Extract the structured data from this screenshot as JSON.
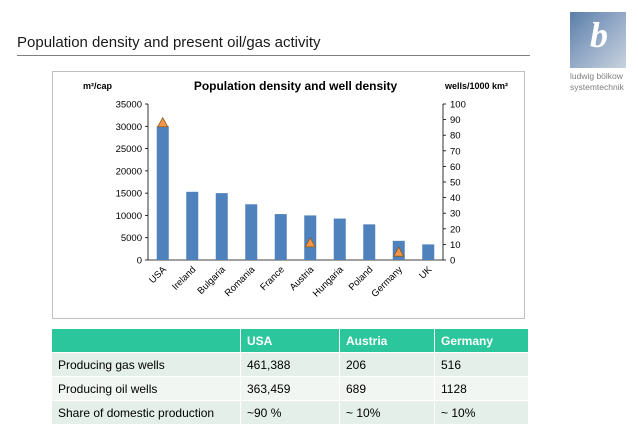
{
  "slide": {
    "title": "Population density and present oil/gas activity",
    "logo_text": "ludwig bölkow systemtechnik"
  },
  "chart_data": {
    "type": "bar",
    "title": "Population density and well density",
    "ylabel_left": "m²/cap",
    "ylabel_right": "wells/1000 km²",
    "categories": [
      "USA",
      "Ireland",
      "Bulgaria",
      "Romania",
      "France",
      "Austria",
      "Hungaria",
      "Poland",
      "Germany",
      "UK"
    ],
    "series": [
      {
        "values": [
          30000,
          15300,
          15000,
          12500,
          10300,
          10000,
          9300,
          8000,
          4300,
          3500
        ],
        "axis": "left",
        "color": "#4f81bd"
      },
      {
        "values": [
          88,
          null,
          null,
          null,
          null,
          null,
          null,
          null,
          null,
          null
        ],
        "points": {
          "USA": 88,
          "Austria": 11,
          "Germany": 5
        },
        "axis": "right",
        "marker": "triangle",
        "color": "#f79646"
      }
    ],
    "ylim_left": [
      0,
      35000
    ],
    "yticks_left": [
      "35000",
      "30000",
      "25000",
      "20000",
      "15000",
      "10000",
      "5000",
      "0"
    ],
    "ylim_right": [
      0,
      100
    ],
    "yticks_right": [
      "100",
      "90",
      "80",
      "70",
      "60",
      "50",
      "40",
      "30",
      "20",
      "10",
      "0"
    ],
    "grid": false,
    "legend": "none"
  },
  "table": {
    "header": [
      "",
      "USA",
      "Austria",
      "Germany"
    ],
    "rows": [
      [
        "Producing gas wells",
        "461,388",
        "206",
        "516"
      ],
      [
        "Producing oil wells",
        "363,459",
        "689",
        "1128"
      ],
      [
        "Share of domestic production",
        "~90 %",
        "~ 10%",
        "~ 10%"
      ]
    ]
  }
}
